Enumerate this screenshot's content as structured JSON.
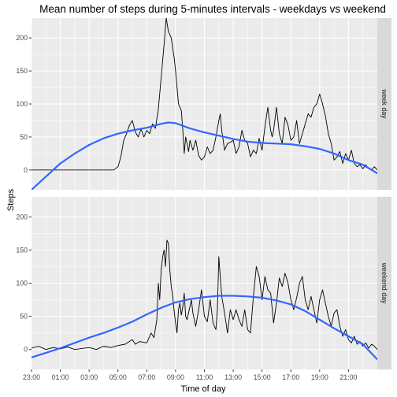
{
  "chart_data": {
    "type": "line",
    "title": "Mean number of steps during 5-minutes intervals - weekdays vs weekend",
    "xlabel": "Time of day",
    "ylabel": "Steps",
    "x_unit": "hour of day (panel starts 23:00, wraps past midnight)",
    "xlim": [
      23,
      47
    ],
    "ylim": [
      -30,
      230
    ],
    "yticks": [
      0,
      50,
      100,
      150,
      200
    ],
    "xticks": [
      "23:00",
      "01:00",
      "03:00",
      "05:00",
      "07:00",
      "09:00",
      "11:00",
      "13:00",
      "15:00",
      "17:00",
      "19:00",
      "21:00"
    ],
    "grid": true,
    "background": "#ebebeb",
    "grid_color": "#ffffff",
    "raw_line_color": "#000000",
    "smooth_line_color": "#3366ff",
    "strip_color": "#d9d9d9",
    "panels": [
      {
        "label": "week day",
        "raw": [
          [
            23.0,
            0
          ],
          [
            24.0,
            0
          ],
          [
            25.0,
            0
          ],
          [
            26.0,
            0
          ],
          [
            27.0,
            0
          ],
          [
            28.0,
            0
          ],
          [
            28.7,
            0
          ],
          [
            29.0,
            5
          ],
          [
            29.2,
            20
          ],
          [
            29.4,
            45
          ],
          [
            29.6,
            55
          ],
          [
            29.8,
            68
          ],
          [
            30.0,
            75
          ],
          [
            30.2,
            58
          ],
          [
            30.4,
            50
          ],
          [
            30.6,
            62
          ],
          [
            30.8,
            50
          ],
          [
            31.0,
            60
          ],
          [
            31.2,
            55
          ],
          [
            31.4,
            70
          ],
          [
            31.6,
            63
          ],
          [
            31.8,
            92
          ],
          [
            32.0,
            140
          ],
          [
            32.2,
            190
          ],
          [
            32.35,
            230
          ],
          [
            32.5,
            210
          ],
          [
            32.7,
            200
          ],
          [
            32.9,
            170
          ],
          [
            33.0,
            150
          ],
          [
            33.2,
            100
          ],
          [
            33.4,
            90
          ],
          [
            33.5,
            60
          ],
          [
            33.6,
            25
          ],
          [
            33.7,
            50
          ],
          [
            33.8,
            40
          ],
          [
            33.9,
            28
          ],
          [
            34.0,
            45
          ],
          [
            34.2,
            30
          ],
          [
            34.4,
            45
          ],
          [
            34.6,
            22
          ],
          [
            34.8,
            15
          ],
          [
            35.0,
            20
          ],
          [
            35.2,
            35
          ],
          [
            35.4,
            25
          ],
          [
            35.6,
            30
          ],
          [
            35.8,
            50
          ],
          [
            36.0,
            75
          ],
          [
            36.1,
            85
          ],
          [
            36.2,
            60
          ],
          [
            36.4,
            30
          ],
          [
            36.6,
            40
          ],
          [
            36.8,
            42
          ],
          [
            37.0,
            45
          ],
          [
            37.2,
            25
          ],
          [
            37.4,
            35
          ],
          [
            37.6,
            60
          ],
          [
            37.8,
            45
          ],
          [
            38.0,
            40
          ],
          [
            38.2,
            20
          ],
          [
            38.4,
            30
          ],
          [
            38.6,
            25
          ],
          [
            38.8,
            48
          ],
          [
            39.0,
            30
          ],
          [
            39.2,
            65
          ],
          [
            39.4,
            95
          ],
          [
            39.6,
            60
          ],
          [
            39.7,
            50
          ],
          [
            39.8,
            60
          ],
          [
            40.0,
            95
          ],
          [
            40.2,
            55
          ],
          [
            40.4,
            40
          ],
          [
            40.6,
            80
          ],
          [
            40.8,
            68
          ],
          [
            41.0,
            45
          ],
          [
            41.2,
            50
          ],
          [
            41.4,
            75
          ],
          [
            41.6,
            40
          ],
          [
            41.8,
            55
          ],
          [
            42.0,
            70
          ],
          [
            42.2,
            85
          ],
          [
            42.4,
            80
          ],
          [
            42.6,
            95
          ],
          [
            42.8,
            100
          ],
          [
            43.0,
            115
          ],
          [
            43.2,
            100
          ],
          [
            43.4,
            82
          ],
          [
            43.6,
            55
          ],
          [
            43.8,
            40
          ],
          [
            44.0,
            15
          ],
          [
            44.2,
            20
          ],
          [
            44.4,
            28
          ],
          [
            44.6,
            10
          ],
          [
            44.8,
            25
          ],
          [
            45.0,
            15
          ],
          [
            45.2,
            30
          ],
          [
            45.4,
            10
          ],
          [
            45.6,
            5
          ],
          [
            45.8,
            8
          ],
          [
            46.0,
            2
          ],
          [
            46.2,
            8
          ],
          [
            46.4,
            2
          ],
          [
            46.6,
            0
          ],
          [
            46.8,
            5
          ],
          [
            47.0,
            0
          ]
        ],
        "smooth": [
          [
            23.0,
            -30
          ],
          [
            24.0,
            -10
          ],
          [
            25.0,
            10
          ],
          [
            26.0,
            25
          ],
          [
            27.0,
            38
          ],
          [
            28.0,
            48
          ],
          [
            29.0,
            55
          ],
          [
            30.0,
            60
          ],
          [
            31.0,
            64
          ],
          [
            32.0,
            70
          ],
          [
            32.5,
            72
          ],
          [
            33.0,
            71
          ],
          [
            34.0,
            63
          ],
          [
            35.0,
            57
          ],
          [
            36.0,
            52
          ],
          [
            37.0,
            47
          ],
          [
            38.0,
            43
          ],
          [
            39.0,
            41
          ],
          [
            40.0,
            40
          ],
          [
            41.0,
            39
          ],
          [
            42.0,
            36
          ],
          [
            43.0,
            32
          ],
          [
            44.0,
            25
          ],
          [
            45.0,
            15
          ],
          [
            46.0,
            8
          ],
          [
            47.0,
            -5
          ]
        ]
      },
      {
        "label": "weekend day",
        "raw": [
          [
            23.0,
            2
          ],
          [
            23.5,
            5
          ],
          [
            24.0,
            0
          ],
          [
            24.5,
            3
          ],
          [
            25.0,
            1
          ],
          [
            25.5,
            4
          ],
          [
            26.0,
            0
          ],
          [
            27.0,
            3
          ],
          [
            27.5,
            0
          ],
          [
            28.0,
            5
          ],
          [
            28.5,
            3
          ],
          [
            29.0,
            6
          ],
          [
            29.5,
            8
          ],
          [
            30.0,
            15
          ],
          [
            30.2,
            8
          ],
          [
            30.5,
            12
          ],
          [
            31.0,
            10
          ],
          [
            31.3,
            25
          ],
          [
            31.5,
            18
          ],
          [
            31.7,
            45
          ],
          [
            31.8,
            100
          ],
          [
            31.9,
            75
          ],
          [
            32.0,
            120
          ],
          [
            32.1,
            140
          ],
          [
            32.2,
            150
          ],
          [
            32.3,
            125
          ],
          [
            32.4,
            165
          ],
          [
            32.5,
            160
          ],
          [
            32.6,
            120
          ],
          [
            32.7,
            95
          ],
          [
            32.8,
            80
          ],
          [
            32.9,
            58
          ],
          [
            33.0,
            40
          ],
          [
            33.1,
            25
          ],
          [
            33.2,
            60
          ],
          [
            33.3,
            70
          ],
          [
            33.4,
            52
          ],
          [
            33.5,
            65
          ],
          [
            33.6,
            85
          ],
          [
            33.7,
            50
          ],
          [
            33.8,
            45
          ],
          [
            34.0,
            65
          ],
          [
            34.1,
            75
          ],
          [
            34.2,
            55
          ],
          [
            34.4,
            35
          ],
          [
            34.6,
            60
          ],
          [
            34.8,
            90
          ],
          [
            35.0,
            50
          ],
          [
            35.2,
            42
          ],
          [
            35.4,
            75
          ],
          [
            35.6,
            40
          ],
          [
            35.8,
            30
          ],
          [
            35.9,
            60
          ],
          [
            36.0,
            140
          ],
          [
            36.1,
            110
          ],
          [
            36.2,
            80
          ],
          [
            36.4,
            55
          ],
          [
            36.6,
            25
          ],
          [
            36.8,
            60
          ],
          [
            37.0,
            45
          ],
          [
            37.2,
            60
          ],
          [
            37.4,
            45
          ],
          [
            37.6,
            35
          ],
          [
            37.8,
            60
          ],
          [
            38.0,
            30
          ],
          [
            38.2,
            25
          ],
          [
            38.4,
            80
          ],
          [
            38.6,
            125
          ],
          [
            38.8,
            110
          ],
          [
            39.0,
            75
          ],
          [
            39.2,
            110
          ],
          [
            39.4,
            90
          ],
          [
            39.6,
            85
          ],
          [
            39.8,
            40
          ],
          [
            40.0,
            70
          ],
          [
            40.2,
            108
          ],
          [
            40.4,
            95
          ],
          [
            40.6,
            115
          ],
          [
            40.8,
            100
          ],
          [
            41.0,
            75
          ],
          [
            41.2,
            60
          ],
          [
            41.4,
            78
          ],
          [
            41.6,
            100
          ],
          [
            41.8,
            110
          ],
          [
            42.0,
            75
          ],
          [
            42.2,
            60
          ],
          [
            42.4,
            80
          ],
          [
            42.6,
            60
          ],
          [
            42.8,
            40
          ],
          [
            43.0,
            75
          ],
          [
            43.2,
            90
          ],
          [
            43.4,
            70
          ],
          [
            43.6,
            50
          ],
          [
            43.8,
            35
          ],
          [
            44.0,
            55
          ],
          [
            44.2,
            60
          ],
          [
            44.4,
            35
          ],
          [
            44.6,
            20
          ],
          [
            44.8,
            30
          ],
          [
            45.0,
            15
          ],
          [
            45.2,
            10
          ],
          [
            45.4,
            20
          ],
          [
            45.6,
            8
          ],
          [
            45.8,
            12
          ],
          [
            46.0,
            5
          ],
          [
            46.2,
            10
          ],
          [
            46.4,
            2
          ],
          [
            46.6,
            8
          ],
          [
            46.8,
            5
          ],
          [
            47.0,
            0
          ]
        ],
        "smooth": [
          [
            23.0,
            -12
          ],
          [
            24.0,
            -5
          ],
          [
            25.0,
            2
          ],
          [
            26.0,
            10
          ],
          [
            27.0,
            18
          ],
          [
            28.0,
            25
          ],
          [
            29.0,
            33
          ],
          [
            30.0,
            42
          ],
          [
            31.0,
            53
          ],
          [
            32.0,
            63
          ],
          [
            33.0,
            71
          ],
          [
            34.0,
            76
          ],
          [
            35.0,
            79
          ],
          [
            36.0,
            81
          ],
          [
            37.0,
            81
          ],
          [
            38.0,
            80
          ],
          [
            39.0,
            78
          ],
          [
            40.0,
            74
          ],
          [
            41.0,
            68
          ],
          [
            42.0,
            58
          ],
          [
            43.0,
            45
          ],
          [
            44.0,
            32
          ],
          [
            45.0,
            20
          ],
          [
            46.0,
            8
          ],
          [
            47.0,
            -15
          ]
        ]
      }
    ]
  }
}
